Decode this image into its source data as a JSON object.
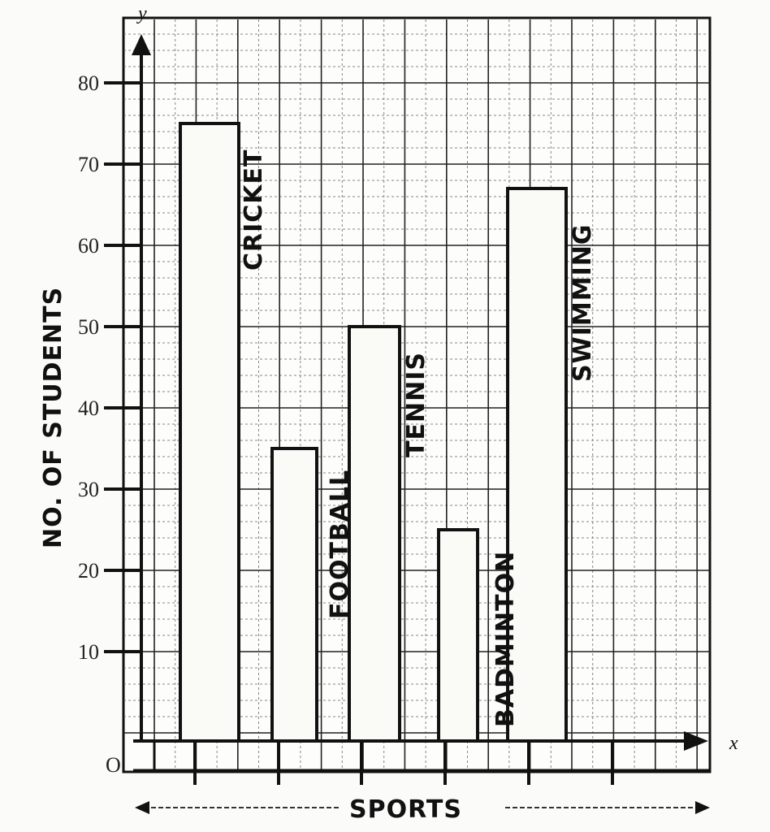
{
  "chart_data": {
    "type": "bar",
    "title": "",
    "xlabel": "SPORTS",
    "ylabel": "NO. OF STUDENTS",
    "x_axis_letter": "x",
    "y_axis_letter": "y",
    "origin_label": "O",
    "categories": [
      "CRICKET",
      "FOOTBALL",
      "TENNIS",
      "BADMINTON",
      "SWIMMING"
    ],
    "values": [
      75,
      35,
      50,
      25,
      67
    ],
    "yticks": [
      10,
      20,
      30,
      40,
      50,
      60,
      70,
      80
    ],
    "ytick_labels": [
      "10",
      "20",
      "30",
      "40",
      "50",
      "60",
      "70",
      "80"
    ],
    "ylim": [
      0,
      80
    ],
    "grid": true,
    "legend": null,
    "bar_labels_position": "vertical text right of each bar"
  },
  "labels": {
    "x_title": "SPORTS",
    "y_title": "NO. OF STUDENTS",
    "x_letter": "x",
    "y_letter": "y",
    "origin": "O",
    "cricket": "CRICKET",
    "football": "FOOTBALL",
    "tennis": "TENNIS",
    "badminton": "BADMINTON",
    "swimming": "SWIMMING",
    "t10": "10",
    "t20": "20",
    "t30": "30",
    "t40": "40",
    "t50": "50",
    "t60": "60",
    "t70": "70",
    "t80": "80"
  }
}
